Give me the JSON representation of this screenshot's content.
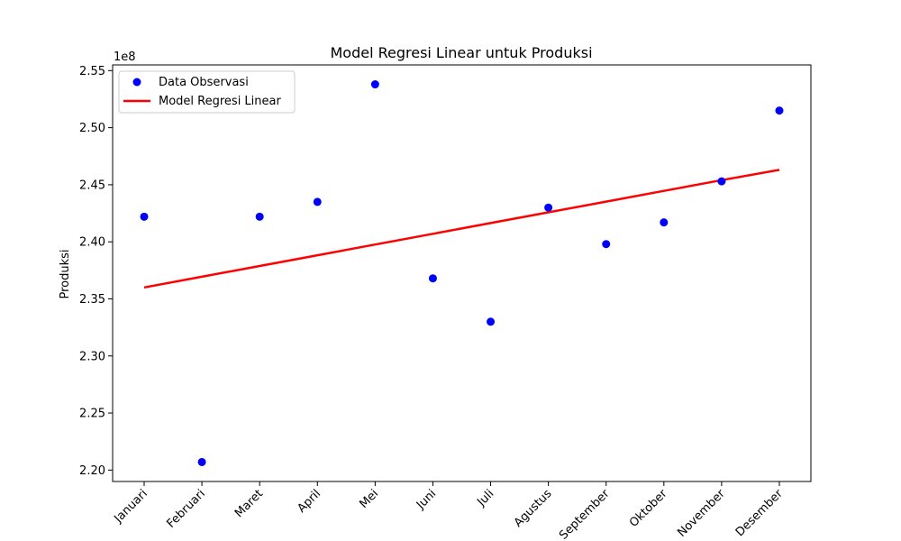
{
  "chart_data": {
    "type": "scatter",
    "title": "Model Regresi Linear untuk Produksi",
    "xlabel": "",
    "ylabel": "Produksi",
    "y_offset_label": "1e8",
    "categories": [
      "Januari",
      "Februari",
      "Maret",
      "April",
      "Mei",
      "Juni",
      "Juli",
      "Agustus",
      "September",
      "Oktober",
      "November",
      "Desember"
    ],
    "ylim": [
      2.19,
      2.555
    ],
    "y_ticks": [
      2.2,
      2.25,
      2.3,
      2.35,
      2.4,
      2.45,
      2.5,
      2.55
    ],
    "y_tick_labels": [
      "2.20",
      "2.25",
      "2.30",
      "2.35",
      "2.40",
      "2.45",
      "2.50",
      "2.55"
    ],
    "series": [
      {
        "name": "Data Observasi",
        "kind": "scatter",
        "color": "#0000ff",
        "values": [
          2.422,
          2.207,
          2.422,
          2.435,
          2.538,
          2.368,
          2.33,
          2.43,
          2.398,
          2.417,
          2.453,
          2.515
        ]
      },
      {
        "name": "Model Regresi Linear",
        "kind": "line",
        "color": "#ff0000",
        "values": [
          2.36,
          2.3694,
          2.3788,
          2.3882,
          2.3976,
          2.407,
          2.4164,
          2.4258,
          2.4352,
          2.4446,
          2.454,
          2.463
        ]
      }
    ],
    "legend_position": "upper-left",
    "grid": false
  }
}
